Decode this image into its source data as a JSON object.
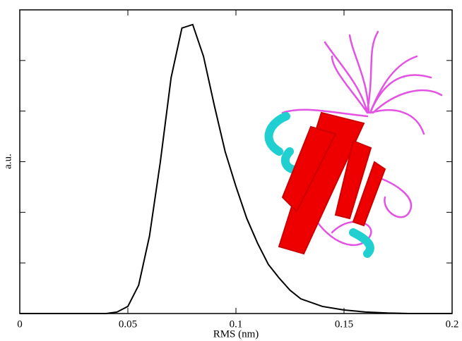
{
  "chart_data": {
    "type": "line",
    "x_label": "RMS (nm)",
    "y_label": "a.u.",
    "x": [
      0.0,
      0.03,
      0.04,
      0.045,
      0.05,
      0.055,
      0.06,
      0.065,
      0.07,
      0.075,
      0.08,
      0.085,
      0.09,
      0.095,
      0.1,
      0.105,
      0.11,
      0.115,
      0.12,
      0.125,
      0.13,
      0.14,
      0.15,
      0.16,
      0.17,
      0.18,
      0.2
    ],
    "values": [
      0,
      0,
      0,
      0.03,
      0.14,
      0.56,
      1.53,
      2.99,
      4.66,
      5.64,
      5.71,
      5.08,
      4.11,
      3.2,
      2.51,
      1.88,
      1.39,
      0.97,
      0.7,
      0.46,
      0.29,
      0.14,
      0.07,
      0.03,
      0.01,
      0,
      0
    ],
    "color": "#000000",
    "xlim": [
      0,
      0.2
    ],
    "xticks": [
      0,
      0.05,
      0.1,
      0.15,
      0.2
    ],
    "ylim": [
      0,
      6
    ],
    "yticks": [
      0,
      1,
      2,
      3,
      4,
      5,
      6
    ]
  }
}
